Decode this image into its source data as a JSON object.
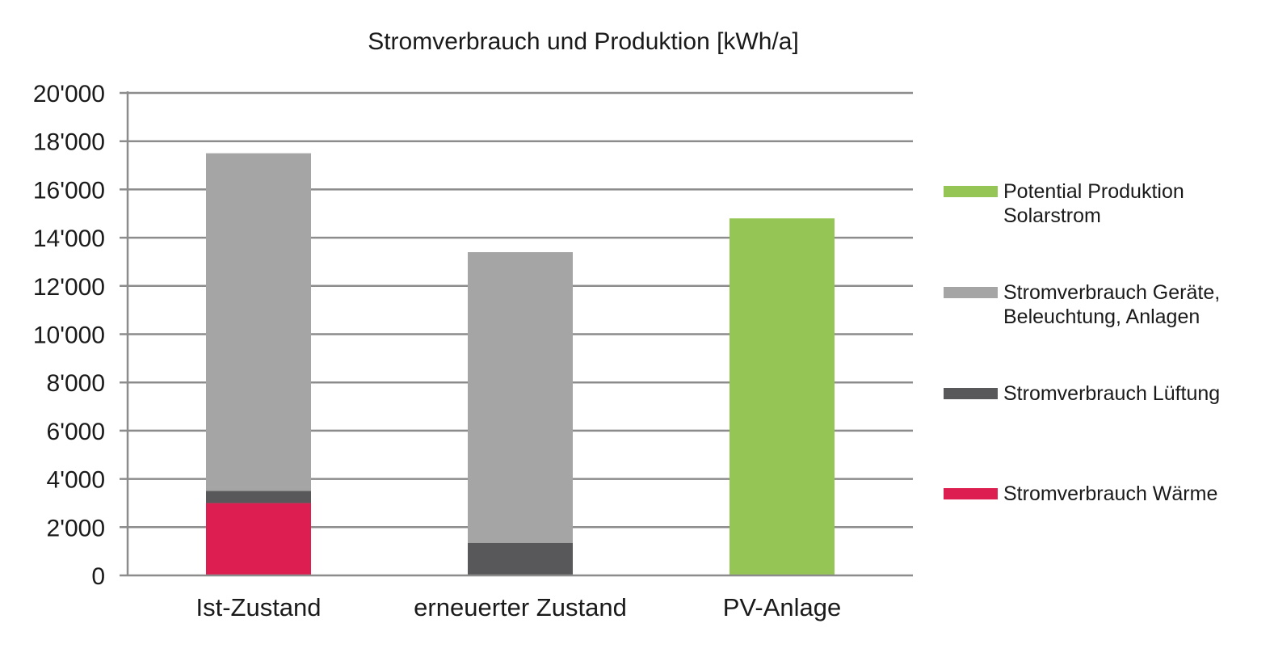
{
  "chart_data": {
    "type": "bar",
    "stacked": true,
    "title": "Stromverbrauch und Produktion [kWh/a]",
    "xlabel": "",
    "ylabel": "",
    "categories": [
      "Ist-Zustand",
      "erneuerter Zustand",
      "PV-Anlage"
    ],
    "ylim": [
      0,
      20000
    ],
    "yticks": [
      0,
      2000,
      4000,
      6000,
      8000,
      10000,
      12000,
      14000,
      16000,
      18000,
      20000
    ],
    "ytick_labels": [
      "0",
      "2'000",
      "4'000",
      "6'000",
      "8'000",
      "10'000",
      "12'000",
      "14'000",
      "16'000",
      "18'000",
      "20'000"
    ],
    "grid": true,
    "legend_position": "right",
    "series": [
      {
        "key": "waerme",
        "name": "Stromverbrauch Wärme",
        "legend_lines": [
          "Stromverbrauch Wärme"
        ],
        "color": "#dc1f50",
        "values": [
          3000,
          0,
          0
        ]
      },
      {
        "key": "lueftung",
        "name": "Stromverbrauch Lüftung",
        "legend_lines": [
          "Stromverbrauch Lüftung"
        ],
        "color": "#58585a",
        "values": [
          500,
          1350,
          0
        ]
      },
      {
        "key": "geraete",
        "name": "Stromverbrauch Geräte, Beleuchtung, Anlagen",
        "legend_lines": [
          "Stromverbrauch Geräte,",
          "Beleuchtung, Anlagen"
        ],
        "color": "#a5a5a5",
        "values": [
          14000,
          12050,
          0
        ]
      },
      {
        "key": "solar",
        "name": "Potential Produktion Solarstrom",
        "legend_lines": [
          "Potential Produktion",
          "Solarstrom"
        ],
        "color": "#95c655",
        "values": [
          0,
          0,
          14800
        ]
      }
    ],
    "legend_order": [
      "solar",
      "geraete",
      "lueftung",
      "waerme"
    ]
  }
}
